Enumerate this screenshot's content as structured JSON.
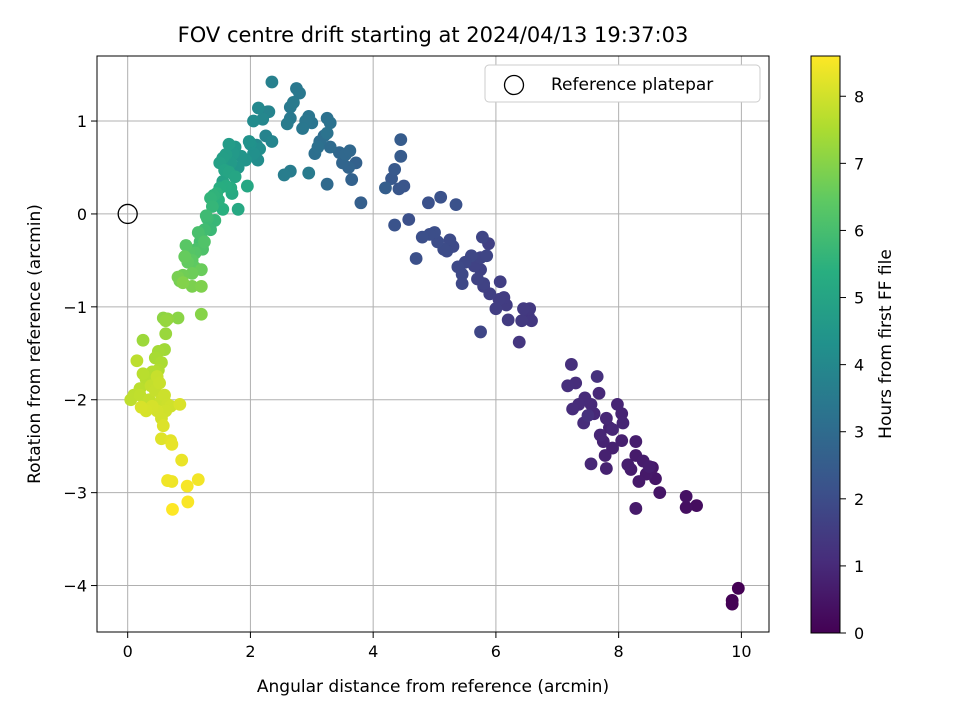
{
  "chart_data": {
    "type": "scatter",
    "title": "FOV centre drift starting at 2024/04/13 19:37:03",
    "xlabel": "Angular distance from reference (arcmin)",
    "ylabel": "Rotation from reference (arcmin)",
    "colorbar_label": "Hours from first FF file",
    "xlim": [
      -0.5,
      10.45
    ],
    "ylim": [
      -4.5,
      1.7
    ],
    "xticks": [
      0,
      2,
      4,
      6,
      8,
      10
    ],
    "yticks": [
      -4,
      -3,
      -2,
      -1,
      0,
      1
    ],
    "colorbar_ticks": [
      0,
      1,
      2,
      3,
      4,
      5,
      6,
      7,
      8
    ],
    "colorbar_range": [
      0,
      8.6
    ],
    "colormap": "viridis",
    "grid": true,
    "legend_position": "top-right",
    "reference": {
      "label": "Reference platepar",
      "x": 0,
      "y": 0
    },
    "points": [
      [
        9.95,
        -4.03,
        0.0
      ],
      [
        9.85,
        -4.16,
        0.02
      ],
      [
        9.85,
        -4.2,
        0.04
      ],
      [
        9.27,
        -3.14,
        0.3
      ],
      [
        9.1,
        -3.16,
        0.35
      ],
      [
        9.1,
        -3.04,
        0.4
      ],
      [
        8.67,
        -3.0,
        0.5
      ],
      [
        8.6,
        -2.85,
        0.52
      ],
      [
        8.55,
        -2.73,
        0.55
      ],
      [
        8.45,
        -2.8,
        0.58
      ],
      [
        8.33,
        -2.88,
        0.6
      ],
      [
        8.28,
        -3.17,
        0.62
      ],
      [
        8.28,
        -2.6,
        0.63
      ],
      [
        8.4,
        -2.66,
        0.65
      ],
      [
        8.2,
        -2.75,
        0.67
      ],
      [
        8.5,
        -2.72,
        0.68
      ],
      [
        8.28,
        -2.45,
        0.7
      ],
      [
        8.15,
        -2.7,
        0.72
      ],
      [
        8.05,
        -2.44,
        0.75
      ],
      [
        7.9,
        -2.52,
        0.77
      ],
      [
        7.78,
        -2.6,
        0.78
      ],
      [
        7.8,
        -2.74,
        0.8
      ],
      [
        7.75,
        -2.45,
        0.82
      ],
      [
        7.85,
        -2.3,
        0.84
      ],
      [
        8.05,
        -2.15,
        0.85
      ],
      [
        8.07,
        -2.25,
        0.87
      ],
      [
        7.98,
        -2.05,
        0.88
      ],
      [
        7.7,
        -2.38,
        0.9
      ],
      [
        7.8,
        -2.2,
        0.92
      ],
      [
        7.9,
        -2.32,
        0.93
      ],
      [
        7.55,
        -2.69,
        0.95
      ],
      [
        7.6,
        -2.15,
        0.97
      ],
      [
        7.68,
        -1.93,
        0.98
      ],
      [
        7.55,
        -2.05,
        1.0
      ],
      [
        7.45,
        -1.98,
        1.02
      ],
      [
        7.43,
        -2.25,
        1.04
      ],
      [
        7.35,
        -2.05,
        1.05
      ],
      [
        7.25,
        -2.1,
        1.07
      ],
      [
        7.3,
        -1.82,
        1.1
      ],
      [
        7.17,
        -1.85,
        1.12
      ],
      [
        7.23,
        -1.62,
        1.15
      ],
      [
        7.65,
        -1.75,
        1.18
      ],
      [
        7.5,
        -2.17,
        1.2
      ],
      [
        6.38,
        -1.38,
        1.35
      ],
      [
        6.53,
        -1.1,
        1.38
      ],
      [
        6.58,
        -1.15,
        1.4
      ],
      [
        6.55,
        -1.02,
        1.42
      ],
      [
        6.42,
        -1.15,
        1.44
      ],
      [
        6.45,
        -1.02,
        1.46
      ],
      [
        6.2,
        -1.14,
        1.48
      ],
      [
        6.17,
        -0.98,
        1.5
      ],
      [
        6.13,
        -0.9,
        1.52
      ],
      [
        6.05,
        -0.92,
        1.54
      ],
      [
        6.0,
        -1.02,
        1.56
      ],
      [
        6.07,
        -0.73,
        1.58
      ],
      [
        5.9,
        -0.86,
        1.6
      ],
      [
        5.8,
        -0.78,
        1.62
      ],
      [
        5.88,
        -0.32,
        1.64
      ],
      [
        5.75,
        -0.6,
        1.66
      ],
      [
        5.8,
        -0.75,
        1.68
      ],
      [
        5.7,
        -0.7,
        1.7
      ],
      [
        5.65,
        -0.56,
        1.72
      ],
      [
        5.75,
        -0.47,
        1.74
      ],
      [
        5.85,
        -0.45,
        1.76
      ],
      [
        5.78,
        -0.25,
        1.78
      ],
      [
        5.75,
        -1.27,
        1.8
      ],
      [
        5.6,
        -0.45,
        1.82
      ],
      [
        5.5,
        -0.52,
        1.84
      ],
      [
        5.45,
        -0.75,
        1.86
      ],
      [
        5.45,
        -0.65,
        1.88
      ],
      [
        5.38,
        -0.57,
        1.9
      ],
      [
        5.3,
        -0.35,
        1.92
      ],
      [
        5.25,
        -0.28,
        1.94
      ],
      [
        5.2,
        -0.4,
        1.96
      ],
      [
        5.15,
        -0.38,
        1.98
      ],
      [
        5.05,
        -0.3,
        2.0
      ],
      [
        5.0,
        -0.2,
        2.02
      ],
      [
        4.92,
        -0.22,
        2.04
      ],
      [
        4.8,
        -0.25,
        2.06
      ],
      [
        4.7,
        -0.48,
        2.08
      ],
      [
        4.58,
        -0.06,
        2.1
      ],
      [
        4.9,
        0.12,
        2.12
      ],
      [
        5.1,
        0.18,
        2.14
      ],
      [
        5.35,
        0.1,
        2.16
      ],
      [
        4.35,
        -0.12,
        2.2
      ],
      [
        4.5,
        0.3,
        2.25
      ],
      [
        4.42,
        0.27,
        2.3
      ],
      [
        4.3,
        0.38,
        2.35
      ],
      [
        4.35,
        0.48,
        2.4
      ],
      [
        4.45,
        0.62,
        2.45
      ],
      [
        4.45,
        0.8,
        2.5
      ],
      [
        4.2,
        0.28,
        2.55
      ],
      [
        3.8,
        0.12,
        2.6
      ],
      [
        3.72,
        0.55,
        2.65
      ],
      [
        3.65,
        0.37,
        2.7
      ],
      [
        3.6,
        0.5,
        2.75
      ],
      [
        3.5,
        0.55,
        2.8
      ],
      [
        3.45,
        0.66,
        2.85
      ],
      [
        3.55,
        0.64,
        2.88
      ],
      [
        3.62,
        0.68,
        2.9
      ],
      [
        3.25,
        0.32,
        2.95
      ],
      [
        3.3,
        0.72,
        3.0
      ],
      [
        3.2,
        0.84,
        3.05
      ],
      [
        3.13,
        0.78,
        3.1
      ],
      [
        3.05,
        0.65,
        3.12
      ],
      [
        3.1,
        0.72,
        3.15
      ],
      [
        3.25,
        1.03,
        3.2
      ],
      [
        3.3,
        0.98,
        3.22
      ],
      [
        3.25,
        0.87,
        3.25
      ],
      [
        3.0,
        0.98,
        3.3
      ],
      [
        2.95,
        1.05,
        3.33
      ],
      [
        2.9,
        1.0,
        3.36
      ],
      [
        2.85,
        0.92,
        3.4
      ],
      [
        2.8,
        1.3,
        3.42
      ],
      [
        2.75,
        1.35,
        3.44
      ],
      [
        2.65,
        1.03,
        3.46
      ],
      [
        2.65,
        1.15,
        3.48
      ],
      [
        2.7,
        1.2,
        3.5
      ],
      [
        2.6,
        0.97,
        3.52
      ],
      [
        2.95,
        0.44,
        3.55
      ],
      [
        2.65,
        0.46,
        3.58
      ],
      [
        2.55,
        0.42,
        3.6
      ],
      [
        2.35,
        1.42,
        3.7
      ],
      [
        2.28,
        1.1,
        3.75
      ],
      [
        2.25,
        0.84,
        3.8
      ],
      [
        2.3,
        1.1,
        3.85
      ],
      [
        2.35,
        0.78,
        3.9
      ],
      [
        2.2,
        1.02,
        3.95
      ],
      [
        2.13,
        1.14,
        4.0
      ],
      [
        2.1,
        0.74,
        4.05
      ],
      [
        2.05,
        1.0,
        4.1
      ],
      [
        2.12,
        0.58,
        4.15
      ],
      [
        2.15,
        0.7,
        4.2
      ],
      [
        2.05,
        0.65,
        4.25
      ],
      [
        2.0,
        0.75,
        4.3
      ],
      [
        1.98,
        0.78,
        4.35
      ],
      [
        1.92,
        0.58,
        4.4
      ],
      [
        1.85,
        0.62,
        4.45
      ],
      [
        1.8,
        0.5,
        4.5
      ],
      [
        1.75,
        0.72,
        4.55
      ],
      [
        1.72,
        0.65,
        4.6
      ],
      [
        1.68,
        0.55,
        4.65
      ],
      [
        1.65,
        0.75,
        4.7
      ],
      [
        1.6,
        0.64,
        4.75
      ],
      [
        1.55,
        0.6,
        4.8
      ],
      [
        1.5,
        0.55,
        4.85
      ],
      [
        1.55,
        0.35,
        4.9
      ],
      [
        1.58,
        0.47,
        4.95
      ],
      [
        1.65,
        0.45,
        5.0
      ],
      [
        1.75,
        0.4,
        5.05
      ],
      [
        1.95,
        0.3,
        5.1
      ],
      [
        1.8,
        0.05,
        5.15
      ],
      [
        1.7,
        0.22,
        5.2
      ],
      [
        1.68,
        0.28,
        5.25
      ],
      [
        1.6,
        0.3,
        5.3
      ],
      [
        1.5,
        0.28,
        5.35
      ],
      [
        1.55,
        0.05,
        5.4
      ],
      [
        1.48,
        0.15,
        5.45
      ],
      [
        1.45,
        0.22,
        5.5
      ],
      [
        1.4,
        0.2,
        5.55
      ],
      [
        1.35,
        0.17,
        5.6
      ],
      [
        1.38,
        0.08,
        5.65
      ],
      [
        1.42,
        -0.07,
        5.7
      ],
      [
        1.35,
        -0.17,
        5.75
      ],
      [
        1.3,
        -0.05,
        5.8
      ],
      [
        1.28,
        -0.02,
        5.85
      ],
      [
        1.25,
        -0.17,
        5.9
      ],
      [
        1.2,
        -0.26,
        5.95
      ],
      [
        1.18,
        -0.3,
        6.0
      ],
      [
        1.15,
        -0.2,
        6.05
      ],
      [
        1.12,
        -0.38,
        6.1
      ],
      [
        1.22,
        -0.38,
        6.15
      ],
      [
        1.25,
        -0.3,
        6.2
      ],
      [
        1.1,
        -0.42,
        6.25
      ],
      [
        1.0,
        -0.42,
        6.3
      ],
      [
        0.95,
        -0.34,
        6.35
      ],
      [
        1.05,
        -0.5,
        6.4
      ],
      [
        1.1,
        -0.58,
        6.45
      ],
      [
        0.98,
        -0.52,
        6.5
      ],
      [
        0.93,
        -0.46,
        6.55
      ],
      [
        1.2,
        -0.6,
        6.6
      ],
      [
        1.05,
        -0.64,
        6.65
      ],
      [
        0.9,
        -0.66,
        6.7
      ],
      [
        0.85,
        -0.72,
        6.75
      ],
      [
        0.82,
        -0.68,
        6.8
      ],
      [
        1.05,
        -0.78,
        6.85
      ],
      [
        1.2,
        -0.78,
        6.9
      ],
      [
        0.9,
        -0.74,
        6.95
      ],
      [
        1.2,
        -1.08,
        7.0
      ],
      [
        0.82,
        -1.12,
        7.05
      ],
      [
        0.58,
        -1.12,
        7.1
      ],
      [
        0.65,
        -1.13,
        7.15
      ],
      [
        0.62,
        -1.15,
        7.2
      ],
      [
        0.62,
        -1.29,
        7.25
      ],
      [
        0.25,
        -1.36,
        7.3
      ],
      [
        0.6,
        -1.46,
        7.35
      ],
      [
        0.5,
        -1.48,
        7.4
      ],
      [
        0.45,
        -1.55,
        7.45
      ],
      [
        0.55,
        -1.6,
        7.5
      ],
      [
        0.5,
        -1.68,
        7.55
      ],
      [
        0.45,
        -1.7,
        7.6
      ],
      [
        0.4,
        -1.7,
        7.62
      ],
      [
        0.35,
        -1.8,
        7.64
      ],
      [
        0.3,
        -1.78,
        7.66
      ],
      [
        0.25,
        -1.72,
        7.68
      ],
      [
        0.2,
        -1.88,
        7.7
      ],
      [
        0.15,
        -1.58,
        7.72
      ],
      [
        0.1,
        -1.95,
        7.74
      ],
      [
        0.05,
        -2.0,
        7.76
      ],
      [
        0.2,
        -1.95,
        7.78
      ],
      [
        0.3,
        -2.05,
        7.8
      ],
      [
        0.35,
        -2.0,
        7.82
      ],
      [
        0.38,
        -1.85,
        7.84
      ],
      [
        0.45,
        -1.9,
        7.86
      ],
      [
        0.48,
        -1.75,
        7.88
      ],
      [
        0.52,
        -1.82,
        7.9
      ],
      [
        0.55,
        -2.0,
        7.92
      ],
      [
        0.6,
        -1.95,
        7.94
      ],
      [
        0.65,
        -2.05,
        7.96
      ],
      [
        0.7,
        -2.07,
        7.98
      ],
      [
        0.62,
        -2.12,
        8.0
      ],
      [
        0.55,
        -2.2,
        8.02
      ],
      [
        0.48,
        -2.12,
        8.04
      ],
      [
        0.4,
        -2.07,
        8.06
      ],
      [
        0.3,
        -2.12,
        8.08
      ],
      [
        0.22,
        -2.08,
        8.1
      ],
      [
        0.85,
        -2.05,
        8.12
      ],
      [
        0.58,
        -2.28,
        8.15
      ],
      [
        0.55,
        -2.42,
        8.2
      ],
      [
        0.7,
        -2.44,
        8.25
      ],
      [
        0.72,
        -2.48,
        8.3
      ],
      [
        0.88,
        -2.65,
        8.35
      ],
      [
        0.72,
        -2.88,
        8.4
      ],
      [
        0.65,
        -2.87,
        8.42
      ],
      [
        1.15,
        -2.86,
        8.45
      ],
      [
        0.97,
        -2.93,
        8.5
      ],
      [
        0.98,
        -3.1,
        8.55
      ],
      [
        0.73,
        -3.18,
        8.6
      ]
    ]
  }
}
